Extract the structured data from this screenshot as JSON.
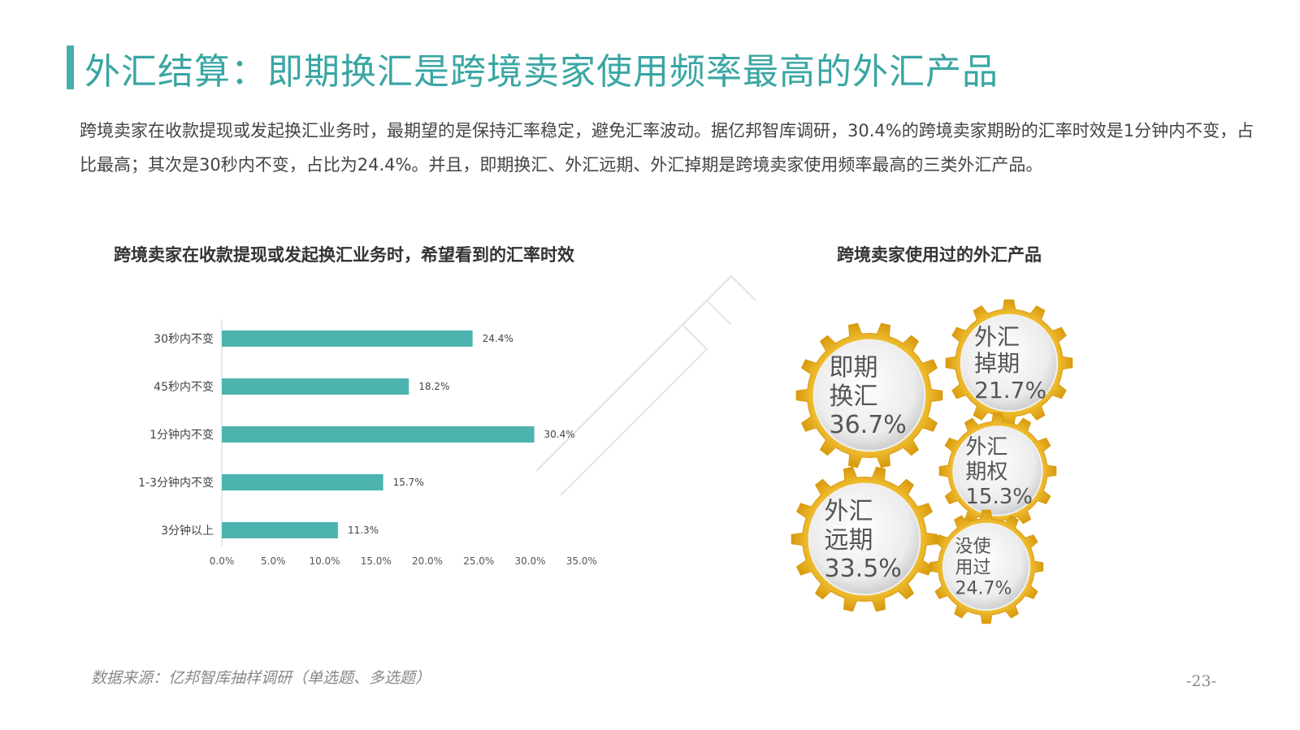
{
  "header": {
    "title": "外汇结算：即期换汇是跨境卖家使用频率最高的外汇产品"
  },
  "description": "跨境卖家在收款提现或发起换汇业务时，最期望的是保持汇率稳定，避免汇率波动。据亿邦智库调研，30.4%的跨境卖家期盼的汇率时效是1分钟内不变，占比最高；其次是30秒内不变，占比为24.4%。并且，即期换汇、外汇远期、外汇掉期是跨境卖家使用频率最高的三类外汇产品。",
  "colors": {
    "accent": "#45b0ab",
    "bar": "#4db3ae",
    "gear": "#f3b41b",
    "gear_dark": "#d99a10"
  },
  "chart_data": [
    {
      "type": "bar",
      "orientation": "horizontal",
      "title": "跨境卖家在收款提现或发起换汇业务时，希望看到的汇率时效",
      "categories": [
        "30秒内不变",
        "45秒内不变",
        "1分钟内不变",
        "1-3分钟内不变",
        "3分钟以上"
      ],
      "values": [
        24.4,
        18.2,
        30.4,
        15.7,
        11.3
      ],
      "value_labels": [
        "24.4%",
        "18.2%",
        "30.4%",
        "15.7%",
        "11.3%"
      ],
      "xlim": [
        0,
        35
      ],
      "xticks": [
        "0.0%",
        "5.0%",
        "10.0%",
        "15.0%",
        "20.0%",
        "25.0%",
        "30.0%",
        "35.0%"
      ],
      "grid": false
    },
    {
      "type": "other",
      "title": "跨境卖家使用过的外汇产品",
      "items": [
        {
          "label_lines": [
            "即期",
            "换汇"
          ],
          "value": "36.7%"
        },
        {
          "label_lines": [
            "外汇",
            "掉期"
          ],
          "value": "21.7%"
        },
        {
          "label_lines": [
            "外汇",
            "期权"
          ],
          "value": "15.3%"
        },
        {
          "label_lines": [
            "外汇",
            "远期"
          ],
          "value": "33.5%"
        },
        {
          "label_lines": [
            "没使",
            "用过"
          ],
          "value": "24.7%"
        }
      ]
    }
  ],
  "footer": {
    "source": "数据来源：亿邦智库抽样调研（单选题、多选题）",
    "page": "-23-"
  }
}
